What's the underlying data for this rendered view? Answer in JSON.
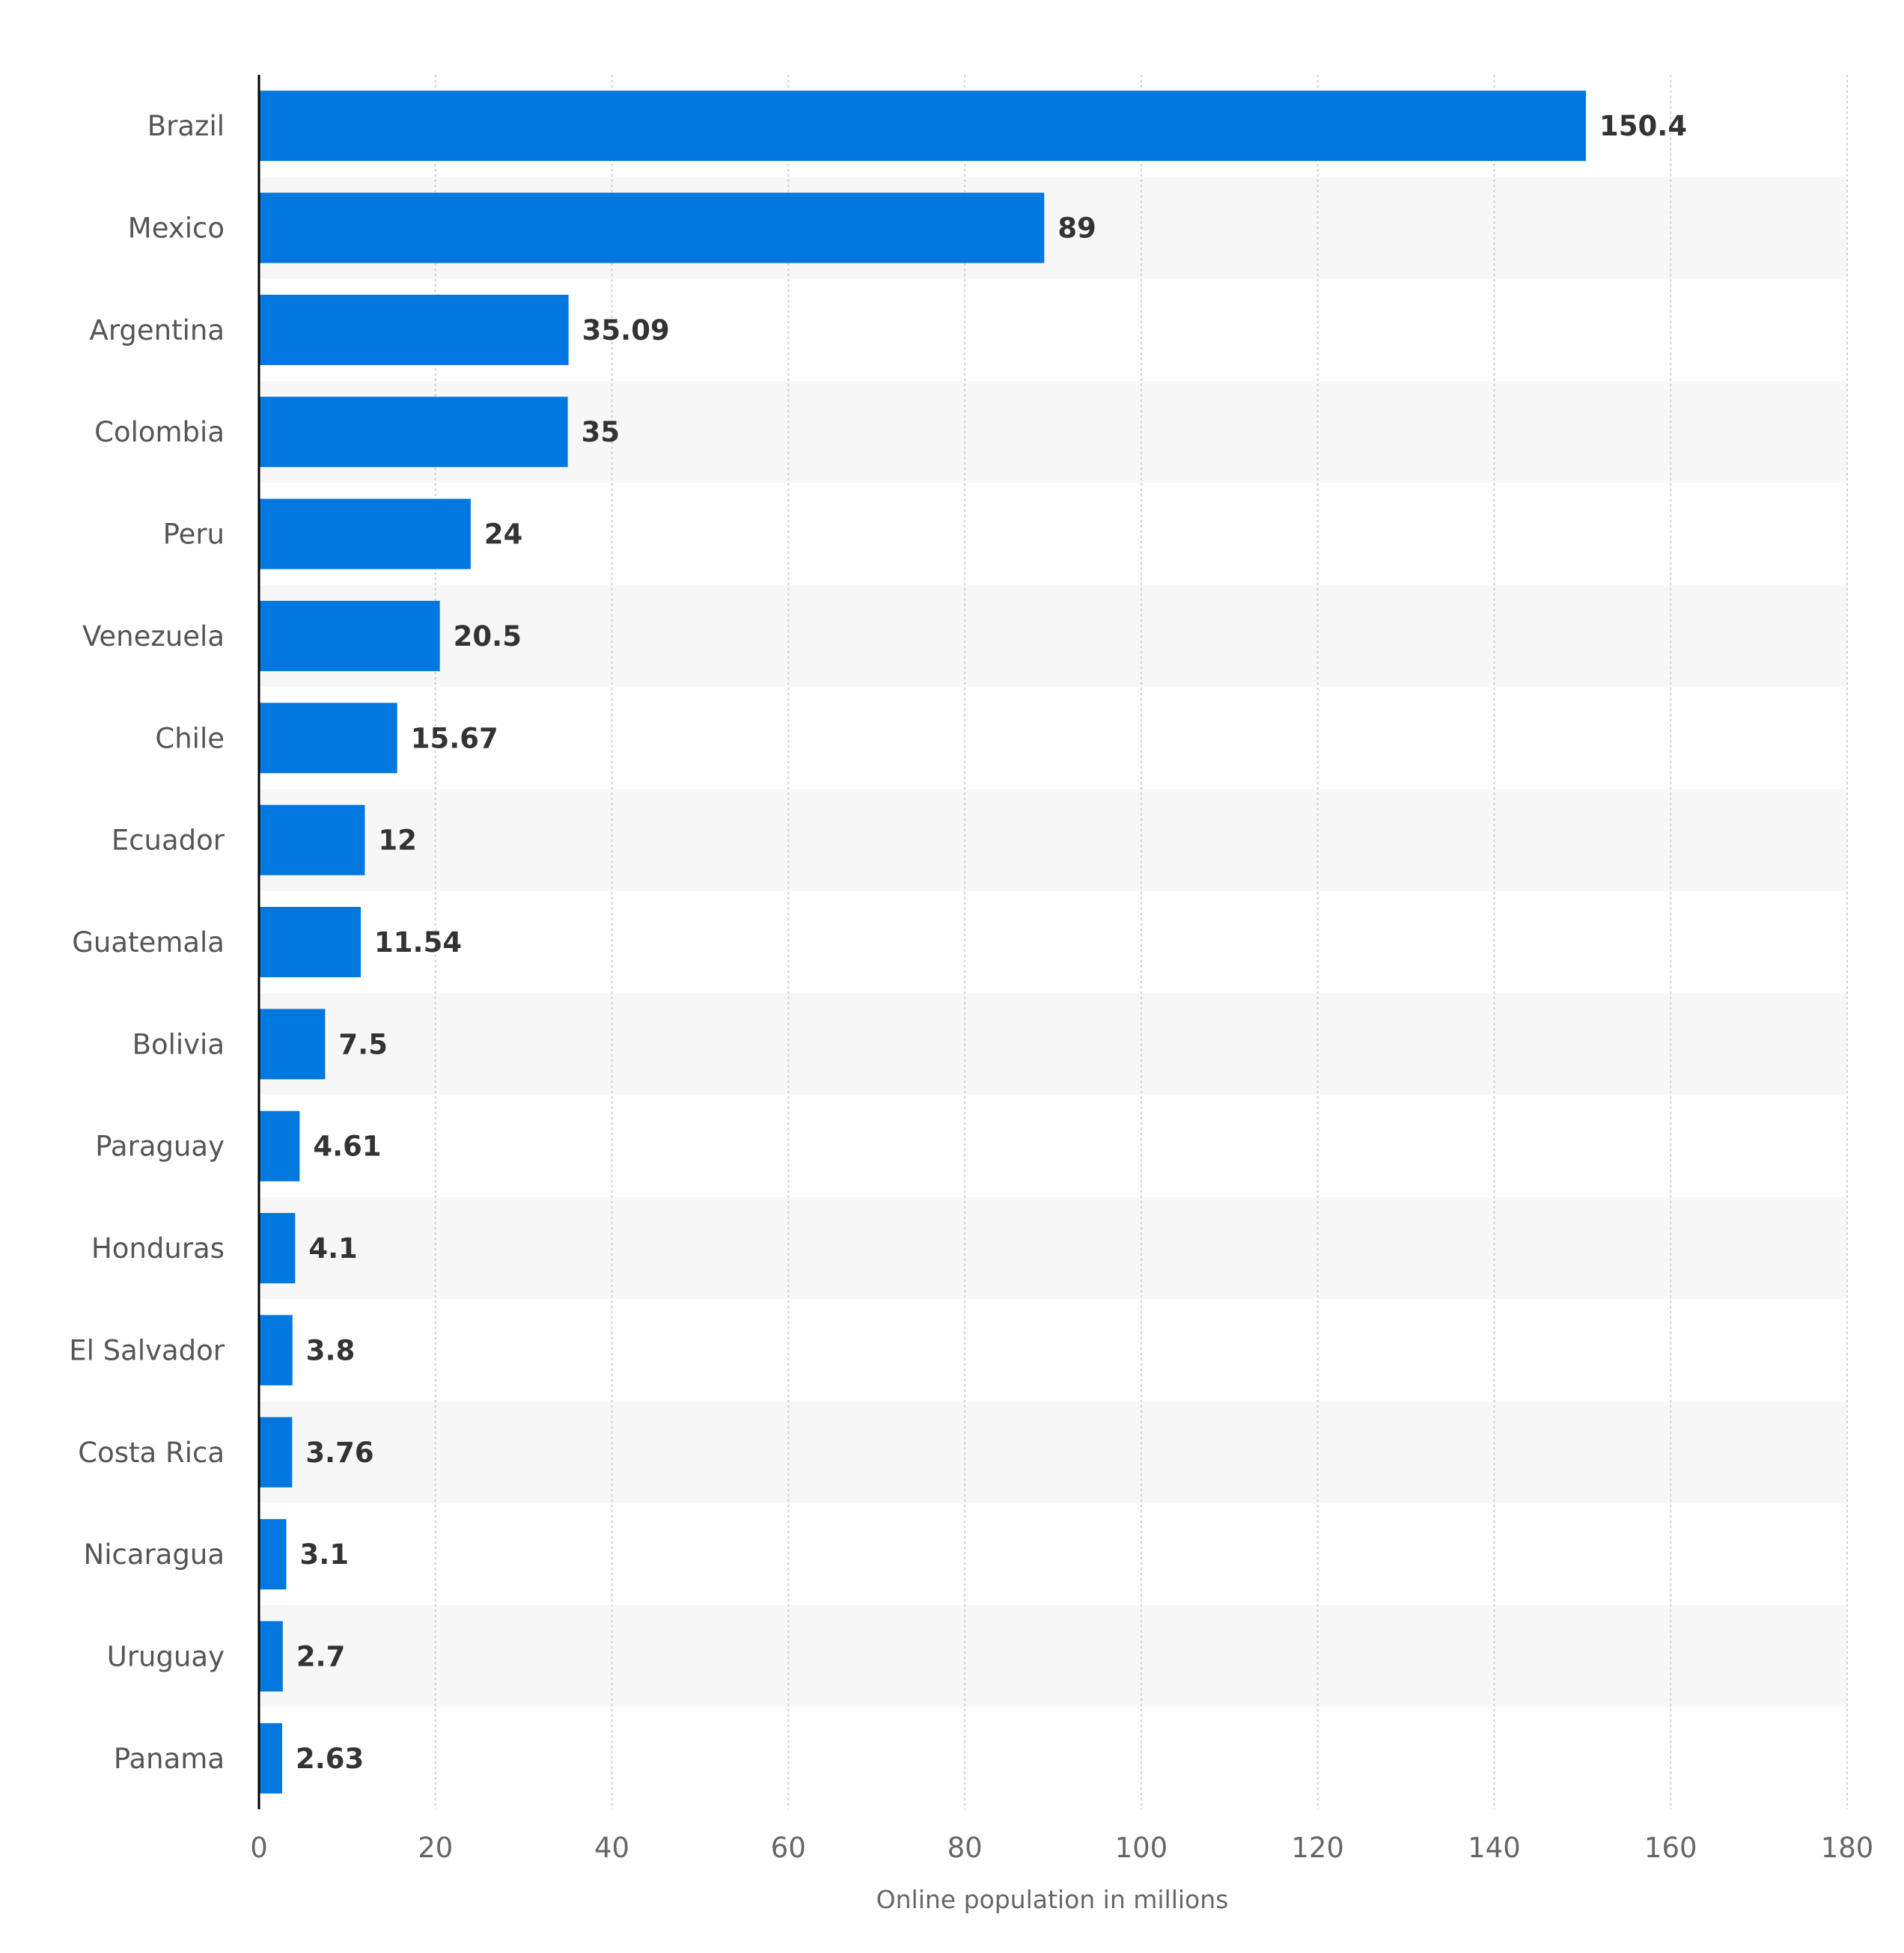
{
  "chart_data": {
    "type": "bar",
    "orientation": "horizontal",
    "categories": [
      "Brazil",
      "Mexico",
      "Argentina",
      "Colombia",
      "Peru",
      "Venezuela",
      "Chile",
      "Ecuador",
      "Guatemala",
      "Bolivia",
      "Paraguay",
      "Honduras",
      "El Salvador",
      "Costa Rica",
      "Nicaragua",
      "Uruguay",
      "Panama"
    ],
    "values": [
      150.4,
      89,
      35.09,
      35,
      24,
      20.5,
      15.67,
      12,
      11.54,
      7.5,
      4.61,
      4.1,
      3.8,
      3.76,
      3.1,
      2.7,
      2.63
    ],
    "value_labels": [
      "150.4",
      "89",
      "35.09",
      "35",
      "24",
      "20.5",
      "15.67",
      "12",
      "11.54",
      "7.5",
      "4.61",
      "4.1",
      "3.8",
      "3.76",
      "3.1",
      "2.7",
      "2.63"
    ],
    "xlabel": "Online population in millions",
    "ylabel": "",
    "xlim": [
      0,
      180
    ],
    "x_ticks": [
      "0",
      "20",
      "40",
      "60",
      "80",
      "100",
      "120",
      "140",
      "160",
      "180"
    ],
    "grid": true,
    "bar_color": "#0177e0",
    "alternate_row_color": "#f7f7f7"
  }
}
